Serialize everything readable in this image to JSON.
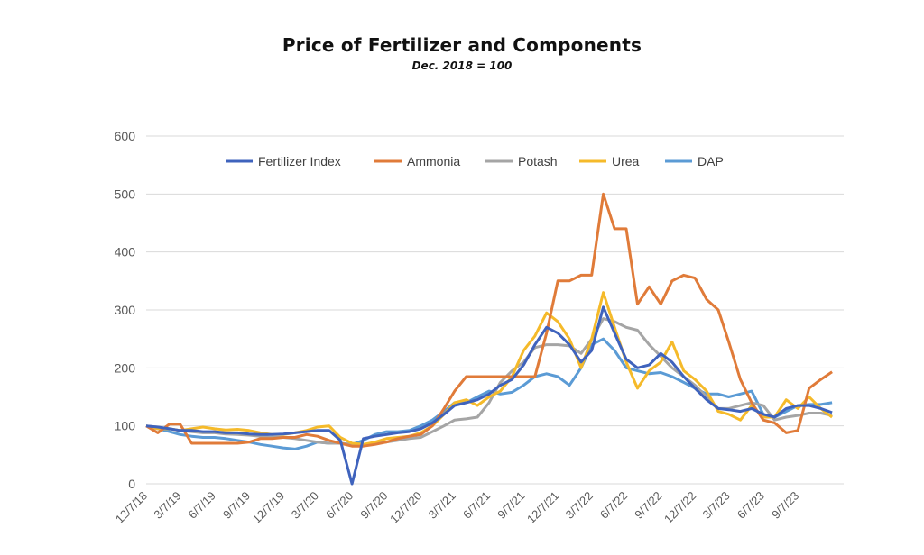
{
  "chart_data": {
    "type": "line",
    "title": "Price of Fertilizer and Components",
    "subtitle": "Dec. 2018 = 100",
    "xlabel": "",
    "ylabel": "",
    "ylim": [
      0,
      600
    ],
    "yticks": [
      "0",
      "100",
      "200",
      "300",
      "400",
      "500",
      "600"
    ],
    "xlim": [
      "2018-12-07",
      "2024-01-07"
    ],
    "xtick_labels": [
      "12/7/18",
      "3/7/19",
      "6/7/19",
      "9/7/19",
      "12/7/19",
      "3/7/20",
      "6/7/20",
      "9/7/20",
      "12/7/20",
      "3/7/21",
      "6/7/21",
      "9/7/21",
      "12/7/21",
      "3/7/22",
      "6/7/22",
      "9/7/22",
      "12/7/22",
      "3/7/23",
      "6/7/23",
      "9/7/23"
    ],
    "grid": true,
    "legend_position": "top",
    "x": [
      "2018-12-07",
      "2019-01-07",
      "2019-02-07",
      "2019-03-07",
      "2019-04-07",
      "2019-05-07",
      "2019-06-07",
      "2019-07-07",
      "2019-08-07",
      "2019-09-07",
      "2019-10-07",
      "2019-11-07",
      "2019-12-07",
      "2020-01-07",
      "2020-02-07",
      "2020-03-07",
      "2020-04-07",
      "2020-05-07",
      "2020-06-07",
      "2020-07-07",
      "2020-08-07",
      "2020-09-07",
      "2020-10-07",
      "2020-11-07",
      "2020-12-07",
      "2021-01-07",
      "2021-02-07",
      "2021-03-07",
      "2021-04-07",
      "2021-05-07",
      "2021-06-07",
      "2021-07-07",
      "2021-08-07",
      "2021-09-07",
      "2021-10-07",
      "2021-11-07",
      "2021-12-07",
      "2022-01-07",
      "2022-02-07",
      "2022-03-07",
      "2022-04-07",
      "2022-05-07",
      "2022-06-07",
      "2022-07-07",
      "2022-08-07",
      "2022-09-07",
      "2022-10-07",
      "2022-11-07",
      "2022-12-07",
      "2023-01-07",
      "2023-02-07",
      "2023-03-07",
      "2023-04-07",
      "2023-05-07",
      "2023-06-07",
      "2023-07-07",
      "2023-08-07",
      "2023-09-07",
      "2023-10-07",
      "2023-11-07",
      "2023-12-07"
    ],
    "series": [
      {
        "name": "Fertilizer Index",
        "color": "#3f63bd",
        "values": [
          100,
          98,
          95,
          92,
          92,
          90,
          90,
          88,
          88,
          86,
          85,
          85,
          86,
          88,
          90,
          92,
          92,
          75,
          0,
          78,
          82,
          85,
          88,
          90,
          95,
          105,
          120,
          135,
          140,
          145,
          155,
          170,
          180,
          205,
          240,
          270,
          260,
          240,
          210,
          230,
          305,
          260,
          215,
          200,
          205,
          225,
          210,
          185,
          165,
          145,
          130,
          128,
          125,
          130,
          120,
          115,
          130,
          135,
          135,
          130,
          123
        ]
      },
      {
        "name": "Ammonia",
        "color": "#e07b39",
        "values": [
          100,
          88,
          103,
          103,
          70,
          70,
          70,
          70,
          70,
          72,
          78,
          78,
          80,
          80,
          85,
          82,
          75,
          70,
          65,
          65,
          68,
          72,
          78,
          82,
          85,
          100,
          130,
          160,
          185,
          185,
          185,
          185,
          185,
          185,
          185,
          260,
          350,
          350,
          360,
          360,
          500,
          440,
          440,
          310,
          340,
          310,
          350,
          360,
          355,
          318,
          300,
          245,
          180,
          140,
          110,
          105,
          88,
          92,
          165,
          180,
          193
        ]
      },
      {
        "name": "Potash",
        "color": "#a5a5a5",
        "values": [
          100,
          98,
          95,
          92,
          90,
          88,
          88,
          86,
          85,
          84,
          82,
          80,
          80,
          78,
          75,
          72,
          70,
          70,
          68,
          68,
          70,
          72,
          75,
          78,
          80,
          90,
          100,
          110,
          112,
          115,
          140,
          175,
          195,
          210,
          235,
          240,
          240,
          238,
          225,
          250,
          285,
          280,
          270,
          265,
          240,
          220,
          200,
          185,
          170,
          150,
          130,
          130,
          135,
          140,
          135,
          110,
          115,
          118,
          122,
          122,
          118
        ]
      },
      {
        "name": "Urea",
        "color": "#f5ba2a",
        "values": [
          100,
          95,
          95,
          92,
          95,
          98,
          95,
          93,
          94,
          92,
          88,
          85,
          85,
          88,
          92,
          98,
          100,
          80,
          70,
          68,
          72,
          78,
          80,
          82,
          88,
          100,
          120,
          140,
          145,
          135,
          150,
          160,
          185,
          230,
          255,
          295,
          280,
          250,
          200,
          250,
          330,
          270,
          210,
          165,
          195,
          210,
          245,
          195,
          180,
          160,
          125,
          120,
          110,
          135,
          115,
          115,
          145,
          130,
          150,
          130,
          115
        ]
      },
      {
        "name": "DAP",
        "color": "#5b9bd5",
        "values": [
          100,
          95,
          90,
          85,
          82,
          80,
          80,
          78,
          75,
          72,
          68,
          65,
          62,
          60,
          65,
          72,
          70,
          70,
          68,
          75,
          85,
          90,
          90,
          92,
          100,
          110,
          125,
          140,
          140,
          150,
          160,
          155,
          158,
          170,
          185,
          190,
          185,
          170,
          200,
          240,
          250,
          230,
          200,
          195,
          190,
          192,
          185,
          175,
          165,
          155,
          155,
          150,
          155,
          160,
          120,
          115,
          125,
          135,
          137,
          137,
          140
        ]
      }
    ]
  }
}
